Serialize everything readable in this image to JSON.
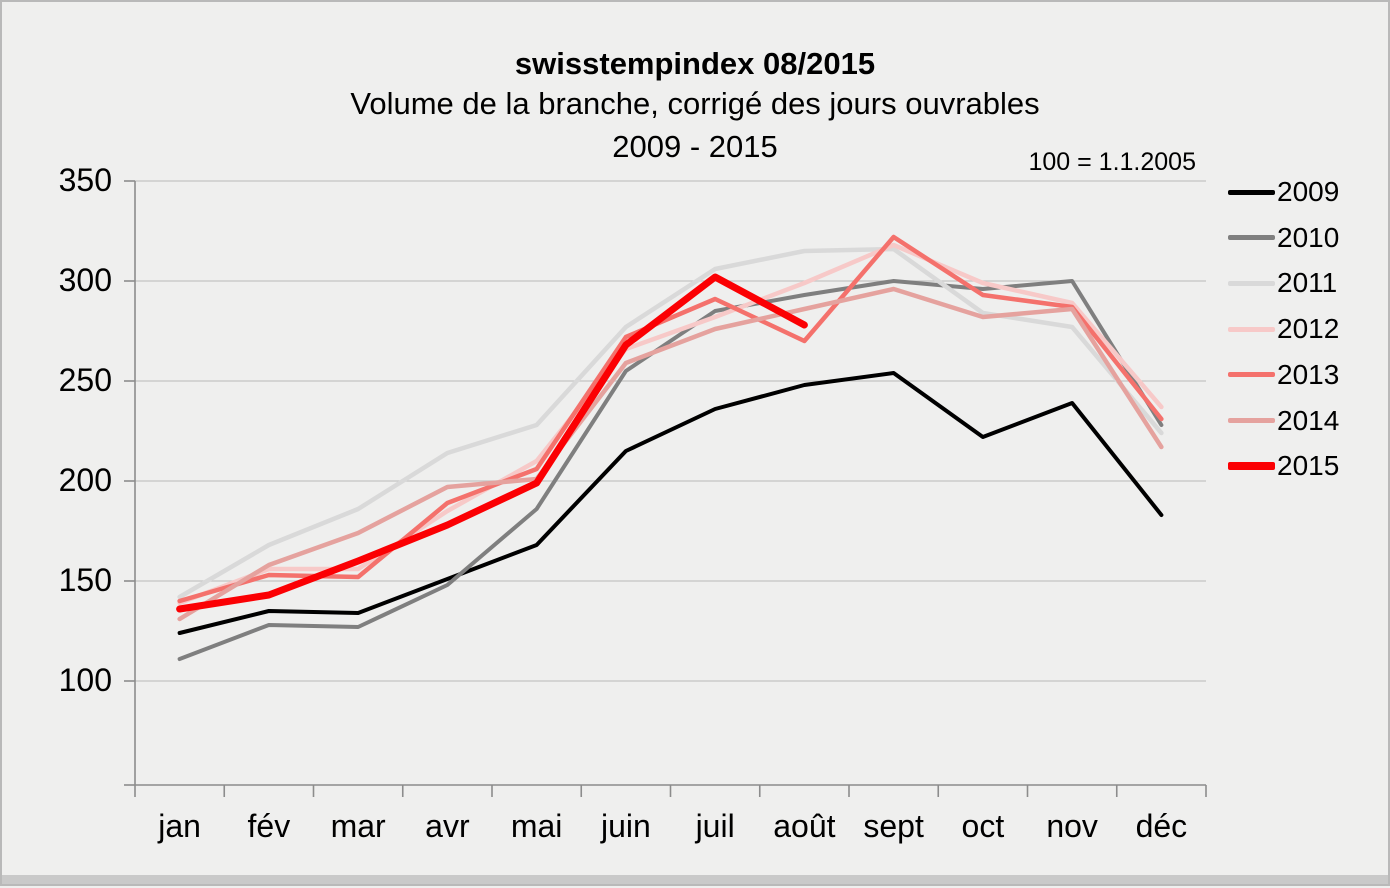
{
  "header": {
    "title": "swisstempindex 08/2015",
    "subtitle": "Volume de la branche, corrigé des jours ouvrables",
    "period": "2009 - 2015",
    "note": "100 = 1.1.2005"
  },
  "chart_data": {
    "type": "line",
    "title": "swisstempindex 08/2015",
    "subtitle": "Volume de la branche, corrigé des jours ouvrables / 2009 - 2015",
    "index_base_note": "100 = 1.1.2005",
    "categories": [
      "jan",
      "fév",
      "mar",
      "avr",
      "mai",
      "juin",
      "juil",
      "août",
      "sept",
      "oct",
      "nov",
      "déc"
    ],
    "ylim": [
      50,
      350
    ],
    "yticks": [
      100,
      150,
      200,
      250,
      300,
      350
    ],
    "grid": true,
    "legend_position": "right",
    "axis_color": "#8c8c8c",
    "gridline_color": "#c3c3c3",
    "series": [
      {
        "name": "2009",
        "color": "#000000",
        "width": 4,
        "values": [
          124,
          135,
          134,
          151,
          168,
          215,
          236,
          248,
          254,
          222,
          239,
          183
        ]
      },
      {
        "name": "2010",
        "color": "#7f7f7f",
        "width": 4,
        "values": [
          111,
          128,
          127,
          148,
          186,
          255,
          285,
          293,
          300,
          296,
          300,
          228
        ]
      },
      {
        "name": "2011",
        "color": "#d9d9d9",
        "width": 4.5,
        "values": [
          142,
          168,
          186,
          214,
          228,
          277,
          306,
          315,
          316,
          284,
          277,
          224
        ]
      },
      {
        "name": "2012",
        "color": "#f7c9c8",
        "width": 4.5,
        "values": [
          139,
          156,
          156,
          185,
          210,
          266,
          282,
          299,
          318,
          299,
          289,
          237
        ]
      },
      {
        "name": "2013",
        "color": "#f4716c",
        "width": 4.5,
        "values": [
          140,
          153,
          152,
          189,
          206,
          272,
          291,
          270,
          322,
          293,
          287,
          231
        ]
      },
      {
        "name": "2014",
        "color": "#e5a29e",
        "width": 4.5,
        "values": [
          131,
          158,
          174,
          197,
          201,
          259,
          276,
          286,
          296,
          282,
          286,
          217
        ]
      },
      {
        "name": "2015",
        "color": "#fb0003",
        "width": 7,
        "values": [
          136,
          143,
          160,
          178,
          199,
          268,
          302,
          278
        ]
      }
    ]
  }
}
